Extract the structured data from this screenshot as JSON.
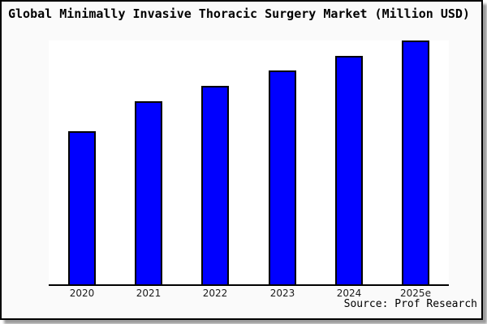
{
  "title": "Global Minimally Invasive Thoracic Surgery Market (Million USD)",
  "source_note": "Source: Prof Research",
  "chart_data": {
    "type": "bar",
    "title": "Global Minimally Invasive Thoracic Surgery Market (Million USD)",
    "categories": [
      "2020",
      "2021",
      "2022",
      "2023",
      "2024",
      "2025e"
    ],
    "values": [
      62.8,
      75.0,
      81.4,
      87.6,
      93.7,
      100
    ],
    "values_note": "relative bar heights, percent of tallest bar (no y-axis scale shown)",
    "xlabel": "",
    "ylabel": "",
    "ylim": [
      0,
      100
    ],
    "grid": false,
    "legend": false,
    "annotations": [
      "Source: Prof Research"
    ]
  },
  "colors": {
    "bar_fill": "#0000ff",
    "bar_border": "#000000",
    "axis": "#000000",
    "card_background": "#fafafa",
    "plot_background": "#ffffff",
    "frame_border": "#000000",
    "shadow": "#9c9c9c"
  }
}
